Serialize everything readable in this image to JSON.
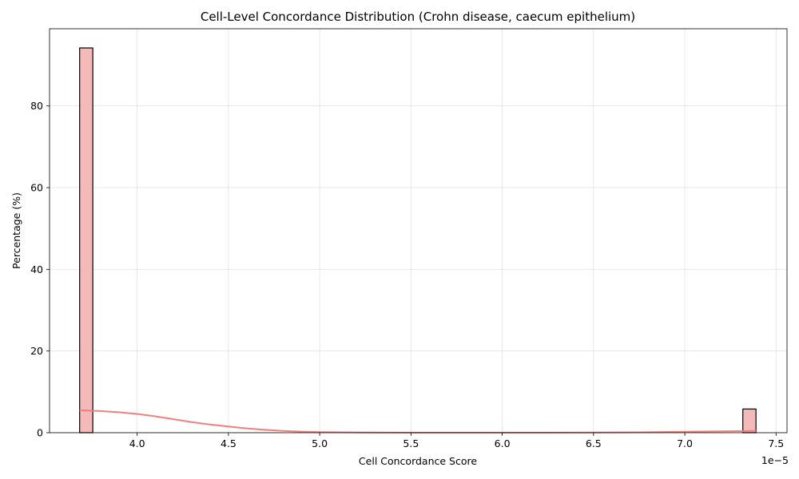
{
  "chart_data": {
    "type": "bar",
    "title": "Cell-Level Concordance Distribution (Crohn disease, caecum epithelium)",
    "xlabel": "Cell Concordance Score",
    "ylabel": "Percentage (%)",
    "x_offset_label": "1e−5",
    "xlim": [
      3.52,
      7.56
    ],
    "ylim": [
      0,
      98.9
    ],
    "x_ticks": [
      4.0,
      4.5,
      5.0,
      5.5,
      6.0,
      6.5,
      7.0,
      7.5
    ],
    "x_tick_labels": [
      "4.0",
      "4.5",
      "5.0",
      "5.5",
      "6.0",
      "6.5",
      "7.0",
      "7.5"
    ],
    "y_ticks": [
      0,
      20,
      40,
      60,
      80
    ],
    "y_tick_labels": [
      "0",
      "20",
      "40",
      "60",
      "80"
    ],
    "grid": true,
    "bars": [
      {
        "x_start": 3.685,
        "x_end": 3.757,
        "value": 94.2
      },
      {
        "x_start": 7.318,
        "x_end": 7.39,
        "value": 5.8
      }
    ],
    "kde": {
      "x": [
        3.685,
        3.8,
        3.9,
        4.0,
        4.1,
        4.2,
        4.3,
        4.4,
        4.5,
        4.6,
        4.7,
        4.8,
        4.9,
        5.0,
        5.25,
        5.5,
        5.75,
        6.0,
        6.25,
        6.5,
        6.75,
        7.0,
        7.2,
        7.39
      ],
      "y": [
        5.5,
        5.3,
        5.0,
        4.6,
        4.0,
        3.3,
        2.6,
        2.0,
        1.5,
        1.05,
        0.7,
        0.45,
        0.28,
        0.15,
        0.05,
        0.02,
        0.01,
        0.01,
        0.02,
        0.05,
        0.1,
        0.25,
        0.35,
        0.45
      ]
    },
    "colors": {
      "bar_fill": "#f4b9b9",
      "bar_edge": "#000000",
      "kde_line": "#f08080"
    }
  }
}
